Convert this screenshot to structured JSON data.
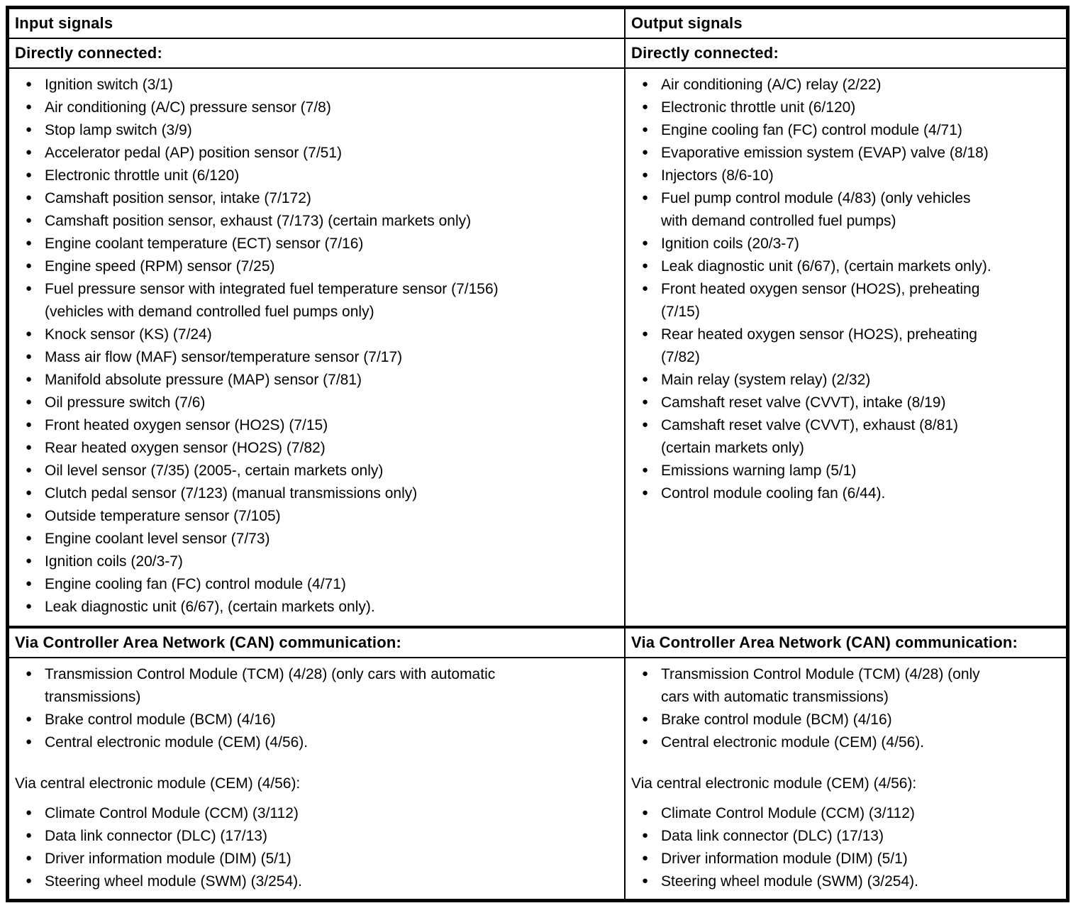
{
  "table": {
    "columns": [
      {
        "header": "Input signals",
        "direct": {
          "heading": "Directly connected:",
          "items": [
            "Ignition switch (3/1)",
            "Air conditioning (A/C) pressure sensor (7/8)",
            "Stop lamp switch (3/9)",
            "Accelerator pedal (AP) position sensor (7/51)",
            "Electronic throttle unit (6/120)",
            "Camshaft position sensor, intake (7/172)",
            "Camshaft position sensor, exhaust (7/173) (certain markets only)",
            "Engine coolant temperature (ECT) sensor (7/16)",
            "Engine speed (RPM) sensor (7/25)",
            "Fuel pressure sensor with integrated fuel temperature sensor (7/156)\n(vehicles with demand controlled fuel pumps only)",
            "Knock sensor (KS) (7/24)",
            "Mass air flow (MAF) sensor/temperature sensor (7/17)",
            "Manifold absolute pressure (MAP) sensor (7/81)",
            "Oil pressure switch (7/6)",
            "Front heated oxygen sensor (HO2S) (7/15)",
            "Rear heated oxygen sensor (HO2S) (7/82)",
            "Oil level sensor (7/35) (2005-, certain markets only)",
            "Clutch pedal sensor (7/123) (manual transmissions only)",
            "Outside temperature sensor (7/105)",
            "Engine coolant level sensor (7/73)",
            "Ignition coils (20/3-7)",
            "Engine cooling fan (FC) control module (4/71)",
            "Leak diagnostic unit (6/67), (certain markets only)."
          ]
        },
        "can": {
          "heading": "Via Controller Area Network (CAN) communication:",
          "items": [
            "Transmission Control Module (TCM) (4/28) (only cars with automatic\ntransmissions)",
            "Brake control module (BCM) (4/16)",
            "Central electronic module (CEM) (4/56)."
          ],
          "sub_heading": "Via central electronic module (CEM) (4/56):",
          "sub_items": [
            "Climate Control Module (CCM) (3/112)",
            "Data link connector (DLC) (17/13)",
            "Driver information module (DIM) (5/1)",
            "Steering wheel module (SWM) (3/254)."
          ]
        }
      },
      {
        "header": "Output signals",
        "direct": {
          "heading": "Directly connected:",
          "items": [
            "Air conditioning (A/C) relay (2/22)",
            "Electronic throttle unit (6/120)",
            "Engine cooling fan (FC) control module (4/71)",
            "Evaporative emission system (EVAP) valve (8/18)",
            "Injectors (8/6-10)",
            "Fuel pump control module (4/83) (only vehicles\nwith demand controlled fuel pumps)",
            "Ignition coils (20/3-7)",
            "Leak diagnostic unit (6/67), (certain markets only).",
            "Front heated oxygen sensor (HO2S), preheating\n(7/15)",
            "Rear heated oxygen sensor (HO2S), preheating\n(7/82)",
            "Main relay (system relay) (2/32)",
            "Camshaft reset valve (CVVT), intake (8/19)",
            "Camshaft reset valve (CVVT), exhaust (8/81)\n(certain markets only)",
            "Emissions warning lamp (5/1)",
            "Control module cooling fan (6/44)."
          ]
        },
        "can": {
          "heading": "Via Controller Area Network (CAN) communication:",
          "items": [
            "Transmission Control Module (TCM) (4/28) (only\ncars with automatic transmissions)",
            "Brake control module (BCM) (4/16)",
            "Central electronic module (CEM) (4/56)."
          ],
          "sub_heading": "Via central electronic module (CEM) (4/56):",
          "sub_items": [
            "Climate Control Module (CCM) (3/112)",
            "Data link connector (DLC) (17/13)",
            "Driver information module (DIM) (5/1)",
            "Steering wheel module (SWM) (3/254)."
          ]
        }
      }
    ]
  }
}
